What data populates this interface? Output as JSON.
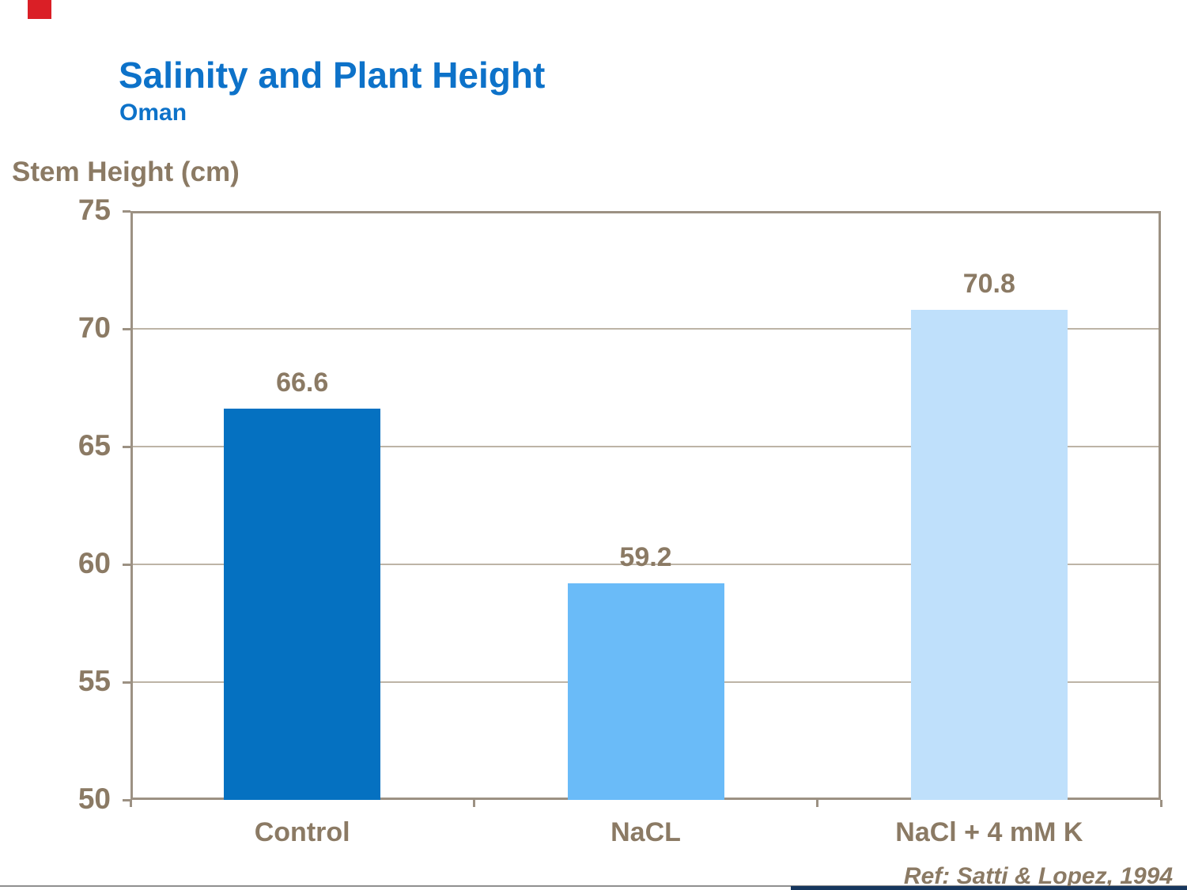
{
  "slide": {
    "title": "Salinity and Plant Height",
    "subtitle": "Oman",
    "reference": "Ref: Satti & Lopez, 1994"
  },
  "chart_data": {
    "type": "bar",
    "title": "Salinity and Plant Height",
    "subtitle": "Oman",
    "ylabel": "Stem Height (cm)",
    "xlabel": "",
    "categories": [
      "Control",
      "NaCL",
      "NaCl + 4 mM K"
    ],
    "values": [
      66.6,
      59.2,
      70.8
    ],
    "value_labels": [
      "66.6",
      "59.2",
      "70.8"
    ],
    "ylim": [
      50,
      75
    ],
    "yticks": [
      50,
      55,
      60,
      65,
      70,
      75
    ],
    "grid": true,
    "legend_position": "none",
    "bar_colors": [
      "#0571C1",
      "#6ABBF8",
      "#BFE0FB"
    ],
    "reference": "Ref: Satti & Lopez, 1994"
  },
  "colors": {
    "title_blue": "#0D72C9",
    "axis_text_brown": "#8B7A64",
    "plot_border_tan": "#9C9183",
    "gridline_tan": "#BDB4A6",
    "bar_control": "#0571C1",
    "bar_nacl": "#6ABBF8",
    "bar_nacl_k": "#BFE0FB",
    "footer_rule_gray": "#8F8F8F",
    "footer_accent_navy": "#17375E",
    "corner_mark_red": "#DA1F26",
    "background": "#FFFFFF"
  }
}
